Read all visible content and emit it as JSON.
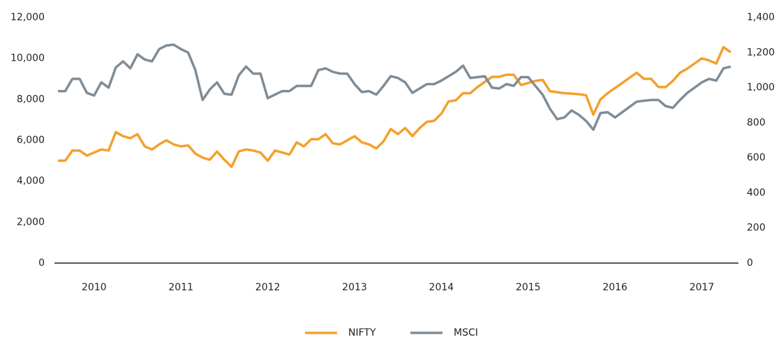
{
  "chart_data": {
    "type": "line",
    "categories": [
      null,
      null,
      null,
      null,
      null,
      "2010",
      null,
      null,
      null,
      null,
      null,
      null,
      null,
      null,
      null,
      null,
      null,
      "2011",
      null,
      null,
      null,
      null,
      null,
      null,
      null,
      null,
      null,
      null,
      null,
      "2012",
      null,
      null,
      null,
      null,
      null,
      null,
      null,
      null,
      null,
      null,
      null,
      "2013",
      null,
      null,
      null,
      null,
      null,
      null,
      null,
      null,
      null,
      null,
      null,
      "2014",
      null,
      null,
      null,
      null,
      null,
      null,
      null,
      null,
      null,
      null,
      null,
      "2015",
      null,
      null,
      null,
      null,
      null,
      null,
      null,
      null,
      null,
      null,
      null,
      "2016",
      null,
      null,
      null,
      null,
      null,
      null,
      null,
      null,
      null,
      null,
      null,
      "2017",
      null,
      null,
      null,
      null
    ],
    "series": [
      {
        "name": "NIFTY",
        "color": "#f4a02b",
        "values": [
          5000,
          5000,
          5500,
          5500,
          5250,
          5400,
          5550,
          5500,
          6400,
          6200,
          6100,
          6300,
          5700,
          5550,
          5800,
          6000,
          5800,
          5700,
          5750,
          5350,
          5150,
          5050,
          5450,
          5050,
          4700,
          5450,
          5550,
          5500,
          5400,
          5000,
          5500,
          5400,
          5300,
          5900,
          5700,
          6050,
          6050,
          6300,
          5850,
          5800,
          6000,
          6200,
          5900,
          5800,
          5600,
          5950,
          6550,
          6300,
          6600,
          6200,
          6600,
          6900,
          6950,
          7300,
          7900,
          7950,
          8300,
          8300,
          8600,
          8850,
          9100,
          9100,
          9200,
          9200,
          8700,
          8800,
          8900,
          8950,
          8400,
          8350,
          8300,
          8280,
          8250,
          8200,
          7250,
          8000,
          8300,
          8550,
          8800,
          9050,
          9300,
          9000,
          9000,
          8600,
          8600,
          8900,
          9300,
          9500,
          9750,
          10000,
          9900,
          9750,
          10550,
          10300
        ]
      },
      {
        "name": "MSCI",
        "color": "#7f8c96",
        "axis": "y2",
        "values": [
          980,
          980,
          1050,
          1050,
          970,
          955,
          1030,
          1000,
          1115,
          1150,
          1110,
          1190,
          1160,
          1150,
          1220,
          1240,
          1245,
          1220,
          1200,
          1100,
          930,
          990,
          1030,
          965,
          960,
          1070,
          1120,
          1080,
          1080,
          940,
          960,
          980,
          980,
          1010,
          1010,
          1010,
          1100,
          1110,
          1090,
          1080,
          1080,
          1020,
          975,
          980,
          960,
          1010,
          1065,
          1055,
          1030,
          970,
          995,
          1020,
          1020,
          1040,
          1065,
          1090,
          1125,
          1055,
          1060,
          1065,
          1000,
          995,
          1020,
          1010,
          1060,
          1060,
          1010,
          960,
          880,
          820,
          830,
          870,
          845,
          810,
          760,
          855,
          860,
          830,
          860,
          890,
          920,
          925,
          930,
          930,
          895,
          885,
          930,
          970,
          1000,
          1030,
          1050,
          1040,
          1110,
          1120
        ]
      }
    ],
    "ylim": [
      0,
      12000
    ],
    "yticks": [
      0,
      {
        "value": 2000,
        "label": "2,000"
      },
      {
        "value": 4000,
        "label": "4,000"
      },
      {
        "value": 6000,
        "label": "6,000"
      },
      {
        "value": 8000,
        "label": "8,000"
      },
      {
        "value": 10000,
        "label": "10,000"
      },
      {
        "value": 12000,
        "label": "12,000"
      }
    ],
    "y2lim": [
      0,
      1400
    ],
    "y2ticks": [
      0,
      200,
      400,
      600,
      800,
      {
        "value": 1000,
        "label": "1,000"
      },
      {
        "value": 1200,
        "label": "1,200"
      },
      {
        "value": 1400,
        "label": "1,400"
      }
    ],
    "grid": false,
    "legend": "bottom"
  }
}
